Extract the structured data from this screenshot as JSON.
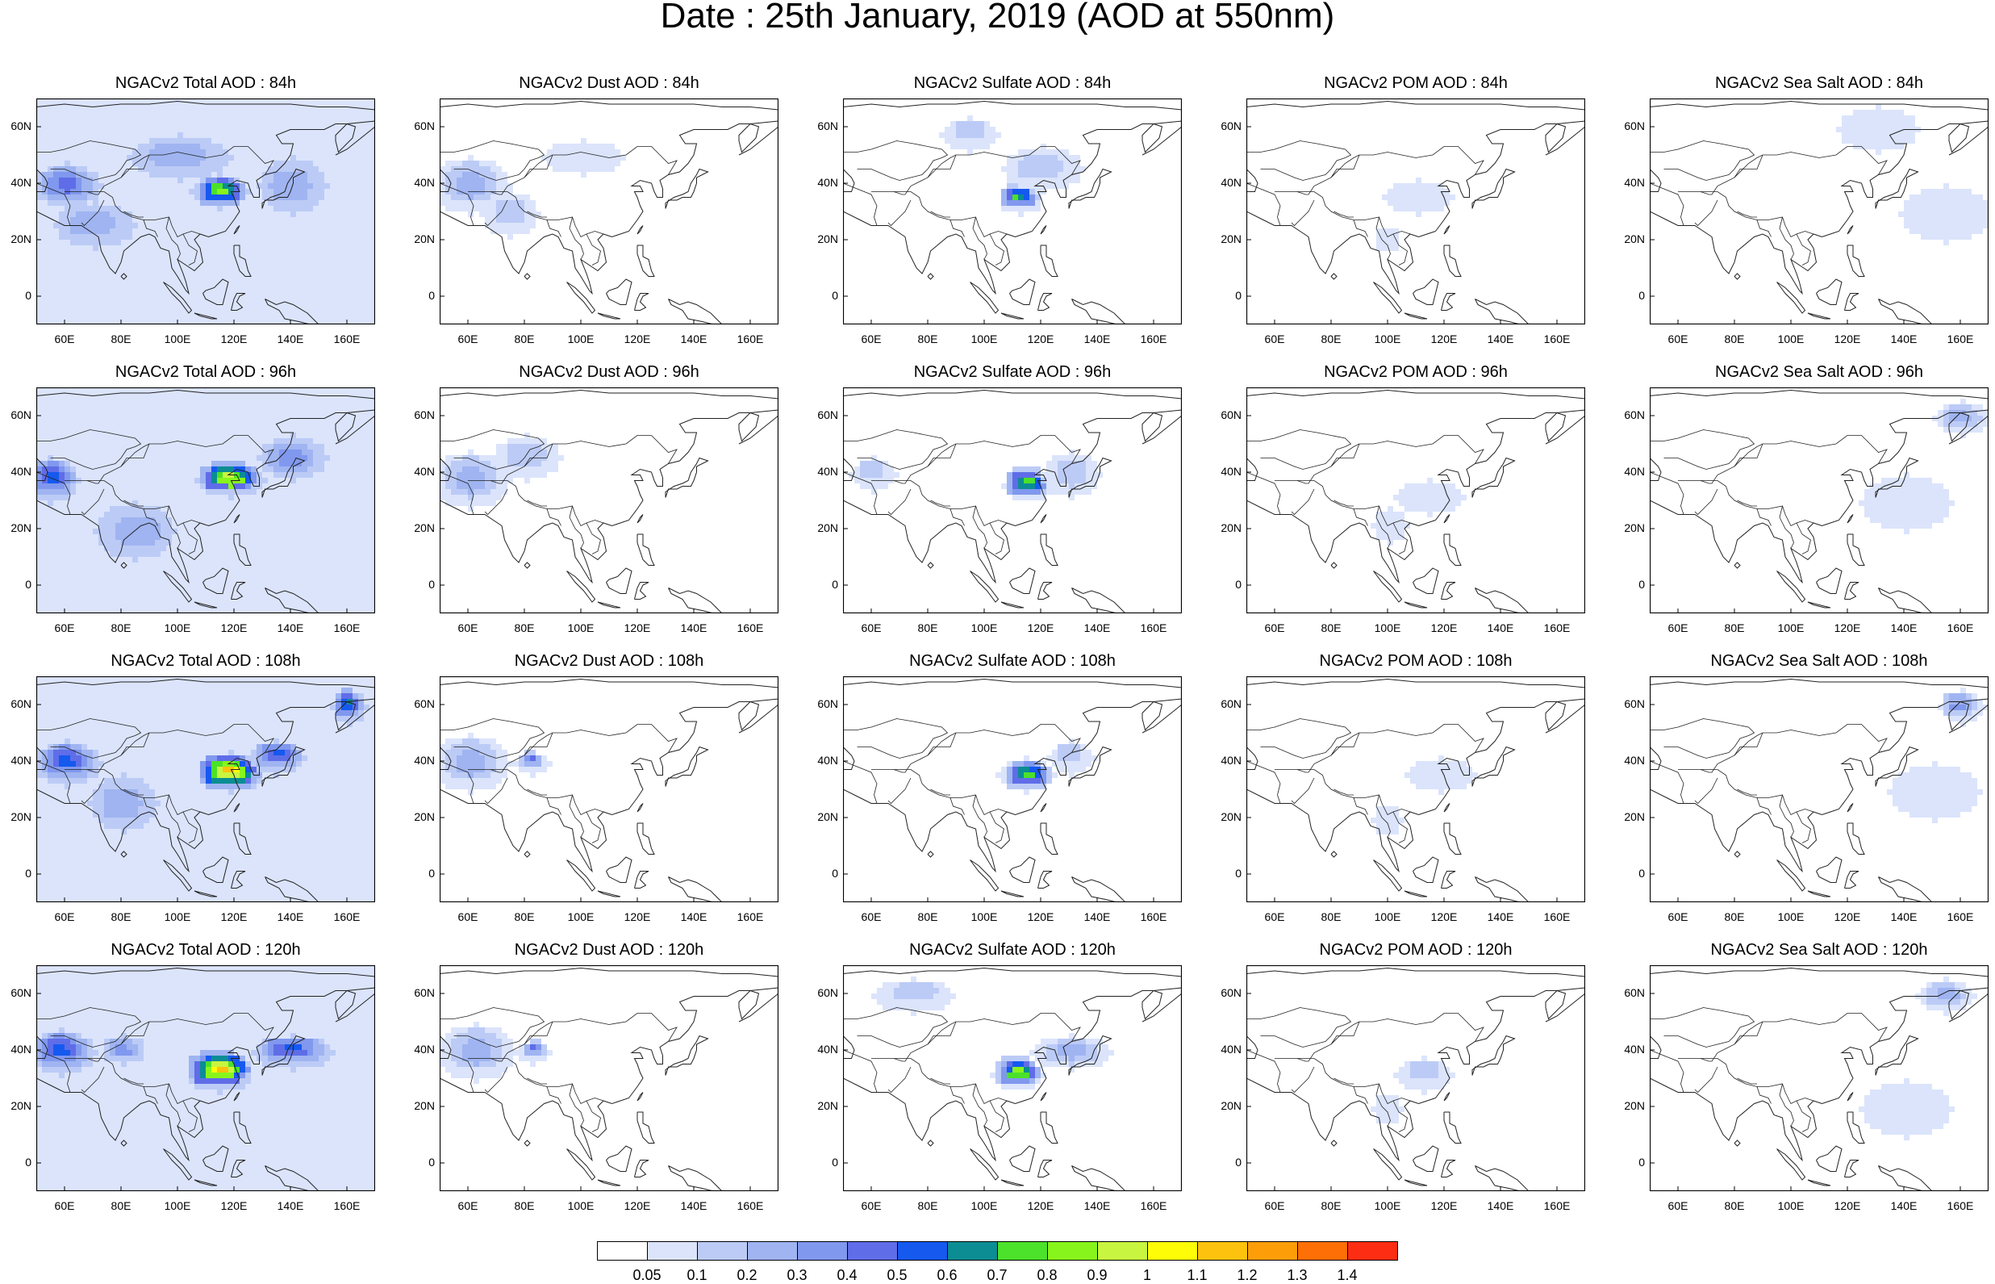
{
  "title": "Date : 25th January, 2019 (AOD at 550nm)",
  "panel_titles": [
    [
      "NGACv2 Total AOD : 84h",
      "NGACv2 Dust AOD : 84h",
      "NGACv2 Sulfate AOD : 84h",
      "NGACv2 POM AOD : 84h",
      "NGACv2 Sea Salt AOD : 84h"
    ],
    [
      "NGACv2 Total AOD : 96h",
      "NGACv2 Dust AOD : 96h",
      "NGACv2 Sulfate AOD : 96h",
      "NGACv2 POM AOD : 96h",
      "NGACv2 Sea Salt AOD : 96h"
    ],
    [
      "NGACv2 Total AOD : 108h",
      "NGACv2 Dust AOD : 108h",
      "NGACv2 Sulfate AOD : 108h",
      "NGACv2 POM AOD : 108h",
      "NGACv2 Sea Salt AOD : 108h"
    ],
    [
      "NGACv2 Total AOD : 120h",
      "NGACv2 Dust AOD : 120h",
      "NGACv2 Sulfate AOD : 120h",
      "NGACv2 POM AOD : 120h",
      "NGACv2 Sea Salt  AOD : 120h"
    ]
  ],
  "lon_ticks": [
    "60E",
    "80E",
    "100E",
    "120E",
    "140E",
    "160E"
  ],
  "lon_values": [
    60,
    80,
    100,
    120,
    140,
    160
  ],
  "lat_ticks": [
    "60N",
    "40N",
    "20N",
    "0"
  ],
  "lat_values": [
    60,
    40,
    20,
    0
  ],
  "domain": {
    "lon_range": [
      50,
      170
    ],
    "lat_range": [
      -10,
      70
    ]
  },
  "colorbar": {
    "labels": [
      "0.05",
      "0.1",
      "0.2",
      "0.3",
      "0.4",
      "0.5",
      "0.6",
      "0.7",
      "0.8",
      "0.9",
      "1",
      "1.1",
      "1.2",
      "1.3",
      "1.4"
    ],
    "colors": [
      "#ffffff",
      "#dbe4fb",
      "#bccbf6",
      "#9fb4f1",
      "#8098ee",
      "#5f6de8",
      "#1559ef",
      "#0b8d93",
      "#4ce12b",
      "#87f51c",
      "#c8f53f",
      "#fefd07",
      "#fdc20d",
      "#fd9d08",
      "#fe6f06",
      "#fd2d13"
    ]
  },
  "fields": [
    [
      {
        "bg": 1,
        "blobs": [
          [
            60,
            40,
            12,
            8,
            4
          ],
          [
            115,
            37,
            10,
            6,
            9
          ],
          [
            100,
            50,
            18,
            8,
            2
          ],
          [
            70,
            25,
            14,
            8,
            2
          ],
          [
            140,
            40,
            12,
            10,
            2
          ]
        ]
      },
      {
        "bg": 0,
        "blobs": [
          [
            60,
            40,
            14,
            10,
            3
          ],
          [
            75,
            30,
            10,
            8,
            2
          ],
          [
            100,
            50,
            14,
            6,
            1
          ]
        ]
      },
      {
        "bg": 0,
        "blobs": [
          [
            112,
            35,
            8,
            5,
            9
          ],
          [
            120,
            45,
            14,
            8,
            2
          ],
          [
            95,
            58,
            10,
            6,
            2
          ]
        ]
      },
      {
        "bg": 0,
        "blobs": [
          [
            110,
            35,
            12,
            6,
            1
          ],
          [
            100,
            20,
            5,
            5,
            1
          ]
        ]
      },
      {
        "bg": 0,
        "blobs": [
          [
            155,
            30,
            16,
            10,
            1
          ],
          [
            130,
            60,
            14,
            8,
            1
          ]
        ]
      }
    ],
    [
      {
        "bg": 1,
        "blobs": [
          [
            55,
            38,
            10,
            8,
            5
          ],
          [
            118,
            38,
            12,
            6,
            10
          ],
          [
            140,
            45,
            12,
            8,
            3
          ],
          [
            85,
            20,
            14,
            10,
            2
          ]
        ]
      },
      {
        "bg": 0,
        "blobs": [
          [
            60,
            38,
            14,
            10,
            3
          ],
          [
            80,
            45,
            12,
            8,
            2
          ]
        ]
      },
      {
        "bg": 0,
        "blobs": [
          [
            115,
            36,
            9,
            6,
            9
          ],
          [
            130,
            40,
            10,
            8,
            2
          ],
          [
            60,
            40,
            8,
            6,
            2
          ]
        ]
      },
      {
        "bg": 0,
        "blobs": [
          [
            115,
            32,
            12,
            6,
            1
          ],
          [
            100,
            22,
            6,
            6,
            1
          ]
        ]
      },
      {
        "bg": 0,
        "blobs": [
          [
            160,
            60,
            10,
            6,
            3
          ],
          [
            140,
            30,
            16,
            10,
            1
          ]
        ]
      }
    ],
    [
      {
        "bg": 1,
        "blobs": [
          [
            60,
            40,
            12,
            8,
            5
          ],
          [
            118,
            36,
            12,
            7,
            12
          ],
          [
            135,
            42,
            10,
            6,
            5
          ],
          [
            160,
            60,
            6,
            6,
            6
          ],
          [
            80,
            25,
            12,
            10,
            2
          ]
        ]
      },
      {
        "bg": 0,
        "blobs": [
          [
            60,
            40,
            14,
            10,
            3
          ],
          [
            82,
            40,
            6,
            4,
            5
          ]
        ]
      },
      {
        "bg": 0,
        "blobs": [
          [
            115,
            35,
            10,
            6,
            9
          ],
          [
            130,
            42,
            8,
            6,
            2
          ]
        ]
      },
      {
        "bg": 0,
        "blobs": [
          [
            118,
            35,
            12,
            6,
            1
          ],
          [
            100,
            20,
            5,
            6,
            1
          ]
        ]
      },
      {
        "bg": 0,
        "blobs": [
          [
            160,
            60,
            8,
            6,
            4
          ],
          [
            150,
            30,
            16,
            10,
            1
          ]
        ]
      }
    ],
    [
      {
        "bg": 1,
        "blobs": [
          [
            58,
            40,
            12,
            8,
            5
          ],
          [
            115,
            33,
            12,
            7,
            12
          ],
          [
            140,
            40,
            14,
            6,
            5
          ],
          [
            80,
            40,
            8,
            5,
            3
          ]
        ]
      },
      {
        "bg": 0,
        "blobs": [
          [
            62,
            40,
            14,
            10,
            3
          ],
          [
            83,
            40,
            6,
            4,
            5
          ]
        ]
      },
      {
        "bg": 0,
        "blobs": [
          [
            112,
            32,
            9,
            6,
            10
          ],
          [
            130,
            40,
            14,
            6,
            3
          ],
          [
            75,
            60,
            14,
            6,
            2
          ]
        ]
      },
      {
        "bg": 0,
        "blobs": [
          [
            112,
            32,
            10,
            6,
            2
          ],
          [
            100,
            20,
            5,
            6,
            1
          ]
        ]
      },
      {
        "bg": 0,
        "blobs": [
          [
            155,
            60,
            10,
            6,
            3
          ],
          [
            140,
            20,
            16,
            10,
            1
          ]
        ]
      }
    ]
  ]
}
